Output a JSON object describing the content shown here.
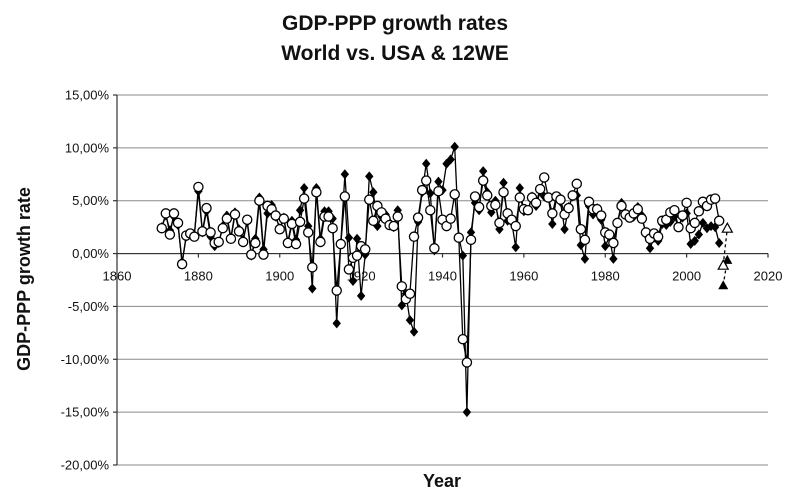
{
  "chart_data": {
    "type": "line",
    "title": [
      "GDP-PPP growth rates",
      "World vs. USA & 12WE"
    ],
    "xlabel": "Year",
    "ylabel": "GDP-PPP growth rate",
    "xlim": [
      1860,
      2020
    ],
    "ylim": [
      -20,
      15
    ],
    "x_ticks": [
      1860,
      1880,
      1900,
      1920,
      1940,
      1960,
      1980,
      2000,
      2020
    ],
    "y_ticks": [
      15,
      10,
      5,
      0,
      -5,
      -10,
      -15,
      -20
    ],
    "y_tick_labels": [
      "15,00%",
      "10,00%",
      "5,00%",
      "0,00%",
      "-5,00%",
      "-10,00%",
      "-15,00%",
      "-20,00%"
    ],
    "grid": "horizontal",
    "legend": "none",
    "series": [
      {
        "marker": "filled-diamond",
        "color": "#000000",
        "x": [
          1871,
          1872,
          1873,
          1874,
          1875,
          1876,
          1877,
          1878,
          1879,
          1880,
          1881,
          1882,
          1883,
          1884,
          1885,
          1886,
          1887,
          1888,
          1889,
          1890,
          1891,
          1892,
          1893,
          1894,
          1895,
          1896,
          1897,
          1898,
          1899,
          1900,
          1901,
          1902,
          1903,
          1904,
          1905,
          1906,
          1907,
          1908,
          1909,
          1910,
          1911,
          1912,
          1913,
          1914,
          1915,
          1916,
          1917,
          1918,
          1919,
          1920,
          1921,
          1922,
          1923,
          1924,
          1925,
          1926,
          1927,
          1928,
          1929,
          1930,
          1931,
          1932,
          1933,
          1934,
          1935,
          1936,
          1937,
          1938,
          1939,
          1940,
          1941,
          1942,
          1943,
          1944,
          1945,
          1946,
          1947,
          1948,
          1949,
          1950,
          1951,
          1952,
          1953,
          1954,
          1955,
          1956,
          1957,
          1958,
          1959,
          1960,
          1961,
          1962,
          1963,
          1964,
          1965,
          1966,
          1967,
          1968,
          1969,
          1970,
          1971,
          1972,
          1973,
          1974,
          1975,
          1976,
          1977,
          1978,
          1979,
          1980,
          1981,
          1982,
          1983,
          1984,
          1985,
          1986,
          1987,
          1988,
          1989,
          1990,
          1991,
          1992,
          1993,
          1994,
          1995,
          1996,
          1997,
          1998,
          1999,
          2000,
          2001,
          2002,
          2003,
          2004,
          2005,
          2006,
          2007,
          2008
        ],
        "y": [
          2.5,
          3.6,
          2.2,
          3.5,
          2.7,
          -0.8,
          1.6,
          1.9,
          1.7,
          5.9,
          2.0,
          4.0,
          1.6,
          0.7,
          1.0,
          2.6,
          3.6,
          1.5,
          3.9,
          2.3,
          1.3,
          3.0,
          -0.2,
          1.4,
          5.3,
          0.4,
          3.8,
          4.6,
          3.5,
          2.4,
          3.4,
          1.1,
          3.1,
          1.3,
          4.1,
          6.2,
          2.6,
          -3.3,
          6.2,
          1.4,
          4.0,
          4.0,
          3.3,
          -6.6,
          1.0,
          7.5,
          1.5,
          -2.6,
          1.4,
          -4.0,
          -0.1,
          7.3,
          5.8,
          2.6,
          3.5,
          3.7,
          2.9,
          2.5,
          4.1,
          -4.9,
          -3.8,
          -6.3,
          -7.4,
          3.0,
          5.8,
          8.5,
          5.7,
          0.3,
          6.8,
          6.0,
          8.5,
          8.9,
          10.1,
          1.6,
          -0.2,
          -15.0,
          2.0,
          4.8,
          4.1,
          7.8,
          5.8,
          3.9,
          5.0,
          2.3,
          6.7,
          3.1,
          3.0,
          0.6,
          6.2,
          4.0,
          4.1,
          5.4,
          4.5,
          5.9,
          5.4,
          5.3,
          2.8,
          5.3,
          4.9,
          2.3,
          4.4,
          5.4,
          5.5,
          0.8,
          -0.5,
          4.5,
          3.7,
          4.3,
          3.2,
          0.7,
          1.6,
          -0.5,
          2.9,
          4.8,
          3.8,
          3.4,
          3.5,
          4.4,
          3.6,
          1.8,
          0.5,
          1.5,
          1.2,
          2.8,
          2.7,
          3.0,
          3.5,
          2.5,
          3.4,
          3.8,
          0.9,
          1.2,
          1.8,
          2.9,
          2.4,
          2.6,
          2.5,
          1.0
        ]
      },
      {
        "marker": "open-circle",
        "color": "#000000",
        "x": [
          1871,
          1872,
          1873,
          1874,
          1875,
          1876,
          1877,
          1878,
          1879,
          1880,
          1881,
          1882,
          1883,
          1884,
          1885,
          1886,
          1887,
          1888,
          1889,
          1890,
          1891,
          1892,
          1893,
          1894,
          1895,
          1896,
          1897,
          1898,
          1899,
          1900,
          1901,
          1902,
          1903,
          1904,
          1905,
          1906,
          1907,
          1908,
          1909,
          1910,
          1911,
          1912,
          1913,
          1914,
          1915,
          1916,
          1917,
          1918,
          1919,
          1920,
          1921,
          1922,
          1923,
          1924,
          1925,
          1926,
          1927,
          1928,
          1929,
          1930,
          1931,
          1932,
          1933,
          1934,
          1935,
          1936,
          1937,
          1938,
          1939,
          1940,
          1941,
          1942,
          1943,
          1944,
          1945,
          1946,
          1947,
          1948,
          1949,
          1950,
          1951,
          1952,
          1953,
          1954,
          1955,
          1956,
          1957,
          1958,
          1959,
          1960,
          1961,
          1962,
          1963,
          1964,
          1965,
          1966,
          1967,
          1968,
          1969,
          1970,
          1971,
          1972,
          1973,
          1974,
          1975,
          1976,
          1977,
          1978,
          1979,
          1980,
          1981,
          1982,
          1983,
          1984,
          1985,
          1986,
          1987,
          1988,
          1989,
          1990,
          1991,
          1992,
          1993,
          1994,
          1995,
          1996,
          1997,
          1998,
          1999,
          2000,
          2001,
          2002,
          2003,
          2004,
          2005,
          2006,
          2007,
          2008
        ],
        "y": [
          2.4,
          3.8,
          1.8,
          3.8,
          2.9,
          -1.0,
          1.7,
          1.9,
          1.6,
          6.3,
          2.1,
          4.3,
          2.0,
          1.0,
          1.1,
          2.4,
          3.3,
          1.4,
          3.7,
          2.1,
          1.1,
          3.2,
          -0.1,
          1.0,
          5.0,
          -0.1,
          4.5,
          4.2,
          3.6,
          2.3,
          3.3,
          1.0,
          2.8,
          0.9,
          3.0,
          5.2,
          2.0,
          -1.3,
          5.8,
          1.1,
          3.5,
          3.5,
          2.4,
          -3.5,
          0.9,
          5.4,
          -1.5,
          -0.4,
          -0.2,
          0.7,
          0.4,
          5.1,
          3.1,
          4.5,
          3.9,
          3.3,
          2.7,
          2.6,
          3.5,
          -3.1,
          -4.3,
          -3.8,
          1.6,
          3.4,
          6.0,
          6.9,
          4.1,
          0.5,
          5.9,
          3.2,
          2.6,
          3.3,
          5.6,
          1.5,
          -8.1,
          -10.3,
          1.3,
          5.4,
          4.4,
          6.9,
          5.5,
          4.5,
          4.6,
          2.9,
          5.8,
          3.8,
          3.2,
          2.6,
          5.3,
          4.2,
          4.1,
          5.3,
          4.8,
          6.1,
          7.2,
          5.3,
          3.8,
          5.4,
          5.1,
          3.7,
          4.3,
          5.5,
          6.6,
          2.3,
          1.3,
          4.9,
          4.2,
          4.2,
          3.6,
          2.0,
          1.8,
          1.0,
          2.9,
          4.5,
          3.7,
          3.4,
          3.8,
          4.2,
          3.3,
          2.0,
          1.4,
          1.9,
          1.6,
          3.1,
          3.2,
          3.9,
          4.1,
          2.5,
          3.6,
          4.8,
          2.4,
          2.9,
          4.0,
          4.9,
          4.5,
          5.1,
          5.2,
          3.1
        ]
      },
      {
        "marker": "filled-triangle",
        "color": "#000000",
        "x": [
          2009,
          2010
        ],
        "y": [
          -3.0,
          -0.6
        ]
      },
      {
        "marker": "open-triangle",
        "color": "#000000",
        "x": [
          2009,
          2010
        ],
        "y": [
          -1.1,
          2.4
        ]
      }
    ]
  }
}
